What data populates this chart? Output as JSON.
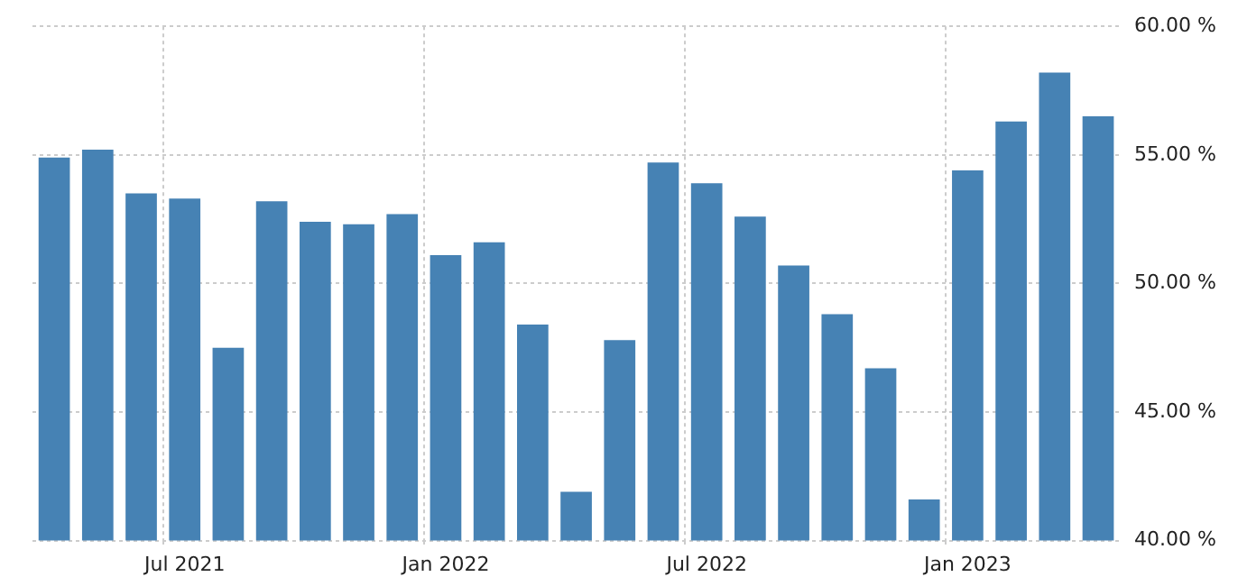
{
  "chart_data": {
    "type": "bar",
    "categories": [
      null,
      null,
      null,
      "Jul 2021",
      null,
      null,
      null,
      null,
      null,
      "Jan 2022",
      null,
      null,
      null,
      null,
      null,
      "Jul 2022",
      null,
      null,
      null,
      null,
      null,
      "Jan 2023",
      null,
      null,
      null
    ],
    "values": [
      54.9,
      55.2,
      53.5,
      53.3,
      47.5,
      53.2,
      52.4,
      52.3,
      52.7,
      51.1,
      51.6,
      48.4,
      41.9,
      47.8,
      54.7,
      53.9,
      52.6,
      50.7,
      48.8,
      46.7,
      41.6,
      54.4,
      56.3,
      58.2,
      56.5
    ],
    "color": "#4682b4",
    "ylim": [
      40,
      60
    ],
    "yticks": [
      {
        "value": 40,
        "label": "40.00 %"
      },
      {
        "value": 45,
        "label": "45.00 %"
      },
      {
        "value": 50,
        "label": "50.00 %"
      },
      {
        "value": 55,
        "label": "55.00 %"
      },
      {
        "value": 60,
        "label": "60.00 %"
      }
    ],
    "grid": true,
    "legend": false
  }
}
